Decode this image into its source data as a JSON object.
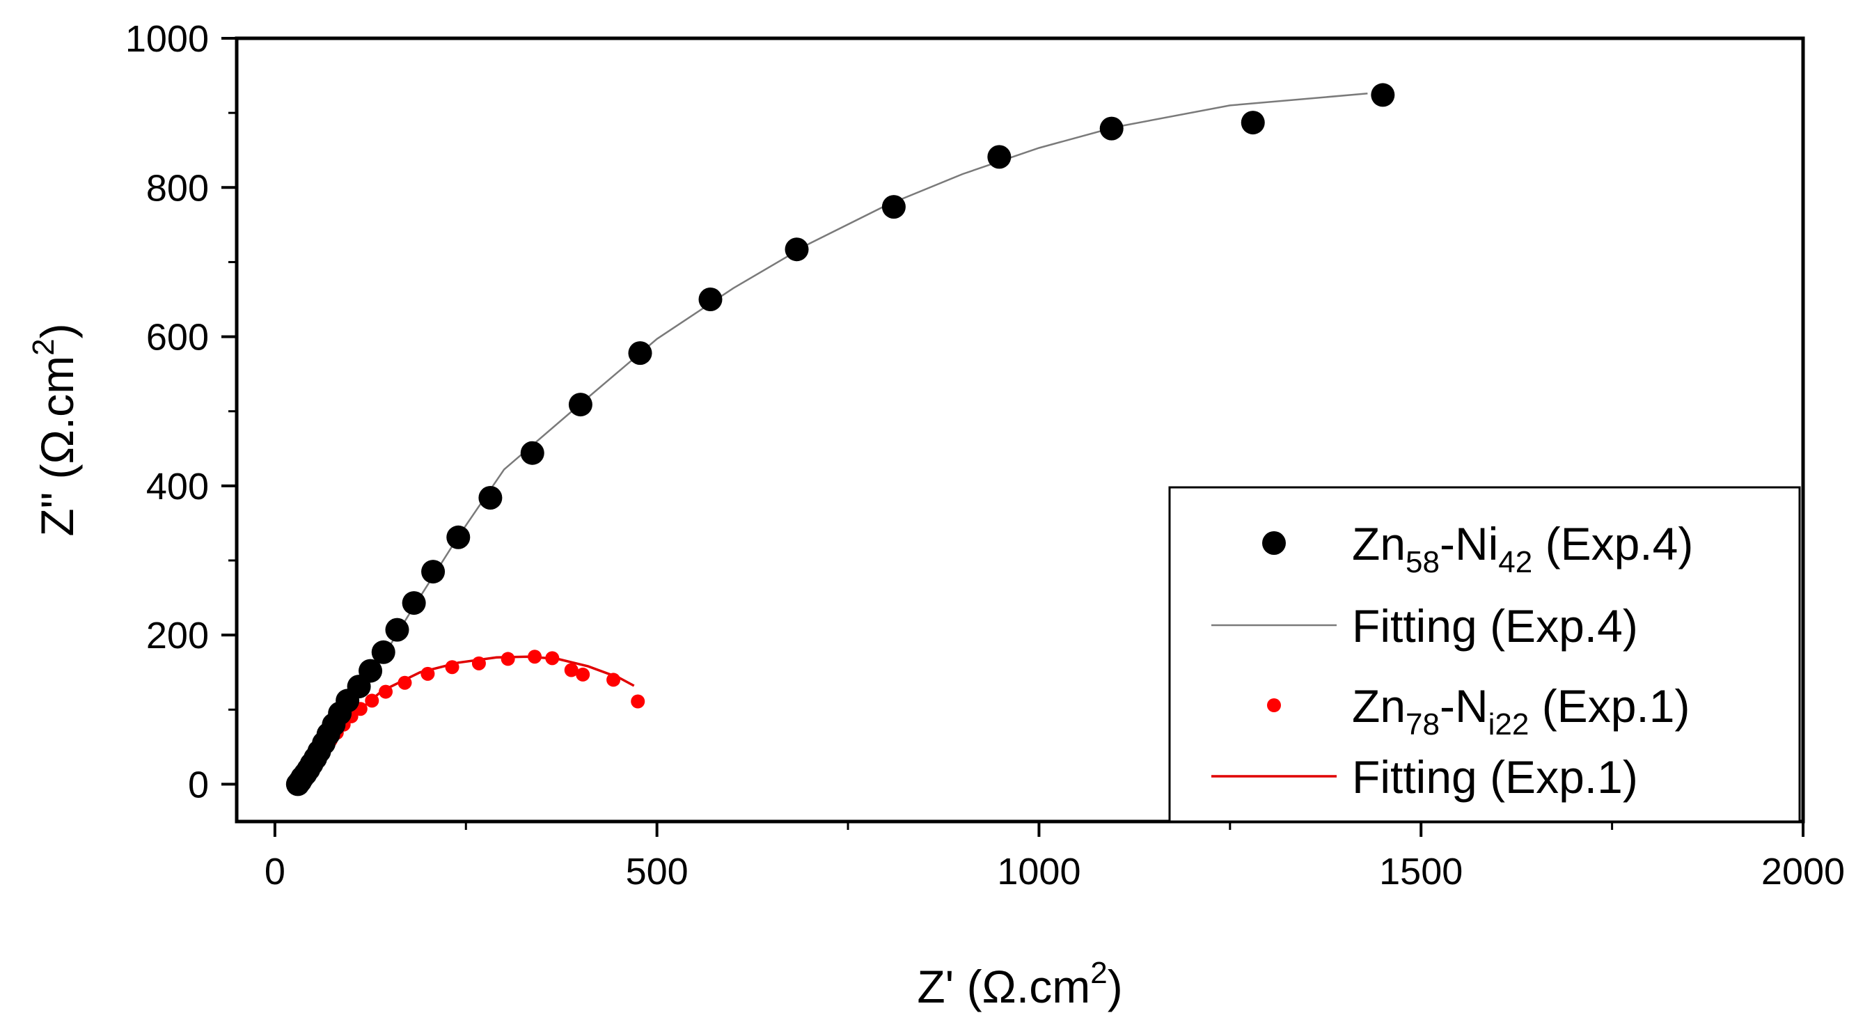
{
  "chart_data": {
    "type": "scatter",
    "xlabel": "Z' (Ω.cm",
    "ylabel": "Z\" (Ω.cm",
    "label_sup": "2",
    "label_close": ")",
    "xlim": [
      -50,
      2000
    ],
    "ylim": [
      -50,
      1000
    ],
    "xticks": [
      0,
      500,
      1000,
      1500,
      2000
    ],
    "yticks": [
      0,
      200,
      400,
      600,
      800,
      1000
    ],
    "xtick_labels": [
      "0",
      "500",
      "1000",
      "1500",
      "2000"
    ],
    "ytick_labels": [
      "0",
      "200",
      "400",
      "600",
      "800",
      "1000"
    ],
    "legend_position": "bottom-right",
    "series": [
      {
        "name": "Zn58-Ni42 (Exp.4)",
        "legend_label": {
          "a": "Zn",
          "a_sub": "58",
          "b": "-Ni",
          "b_sub": "42",
          "c": " (Exp.4)"
        },
        "kind": "scatter",
        "color": "#000000",
        "x": [
          30,
          33,
          36,
          40,
          44,
          48,
          53,
          58,
          64,
          70,
          77,
          85,
          95,
          110,
          125,
          142,
          160,
          182,
          207,
          240,
          282,
          337,
          400,
          478,
          570,
          683,
          810,
          948,
          1095,
          1280,
          1450
        ],
        "y": [
          0,
          4,
          9,
          14,
          20,
          27,
          35,
          44,
          55,
          67,
          80,
          95,
          112,
          131,
          152,
          177,
          207,
          243,
          285,
          331,
          384,
          444,
          509,
          578,
          650,
          717,
          774,
          841,
          879,
          887,
          924
        ]
      },
      {
        "name": "Fitting (Exp.4)",
        "legend_label": {
          "a": "Fitting (Exp.4)"
        },
        "kind": "line",
        "color": "#7a7a7a",
        "x": [
          30,
          40,
          55,
          75,
          100,
          135,
          180,
          240,
          300,
          400,
          500,
          600,
          700,
          800,
          900,
          1000,
          1100,
          1250,
          1430
        ],
        "y": [
          0,
          12,
          38,
          72,
          108,
          160,
          235,
          332,
          422,
          510,
          597,
          665,
          725,
          776,
          818,
          853,
          881,
          910,
          926
        ]
      },
      {
        "name": "Zn78-Ni22 (Exp.1)",
        "legend_label": {
          "a": "Zn",
          "a_sub": "78",
          "b": "-N",
          "b_sub": "i22",
          "c": " (Exp.1)"
        },
        "kind": "scatter",
        "color": "#ff0000",
        "x": [
          35,
          38,
          41,
          45,
          50,
          55,
          60,
          66,
          73,
          81,
          90,
          100,
          112,
          127,
          145,
          170,
          200,
          232,
          267,
          305,
          340,
          363,
          388,
          403,
          443,
          475
        ],
        "y": [
          2,
          6,
          11,
          17,
          24,
          32,
          40,
          49,
          59,
          69,
          80,
          91,
          101,
          112,
          124,
          136,
          148,
          157,
          162,
          168,
          171,
          169,
          153,
          147,
          140,
          111
        ]
      },
      {
        "name": "Fitting (Exp.1)",
        "legend_label": {
          "a": "Fitting (Exp.1)"
        },
        "kind": "line",
        "color": "#e00000",
        "x": [
          35,
          50,
          70,
          100,
          140,
          190,
          240,
          290,
          330,
          370,
          410,
          450,
          470
        ],
        "y": [
          2,
          24,
          55,
          90,
          125,
          150,
          163,
          170,
          171,
          168,
          158,
          143,
          132
        ]
      }
    ]
  }
}
